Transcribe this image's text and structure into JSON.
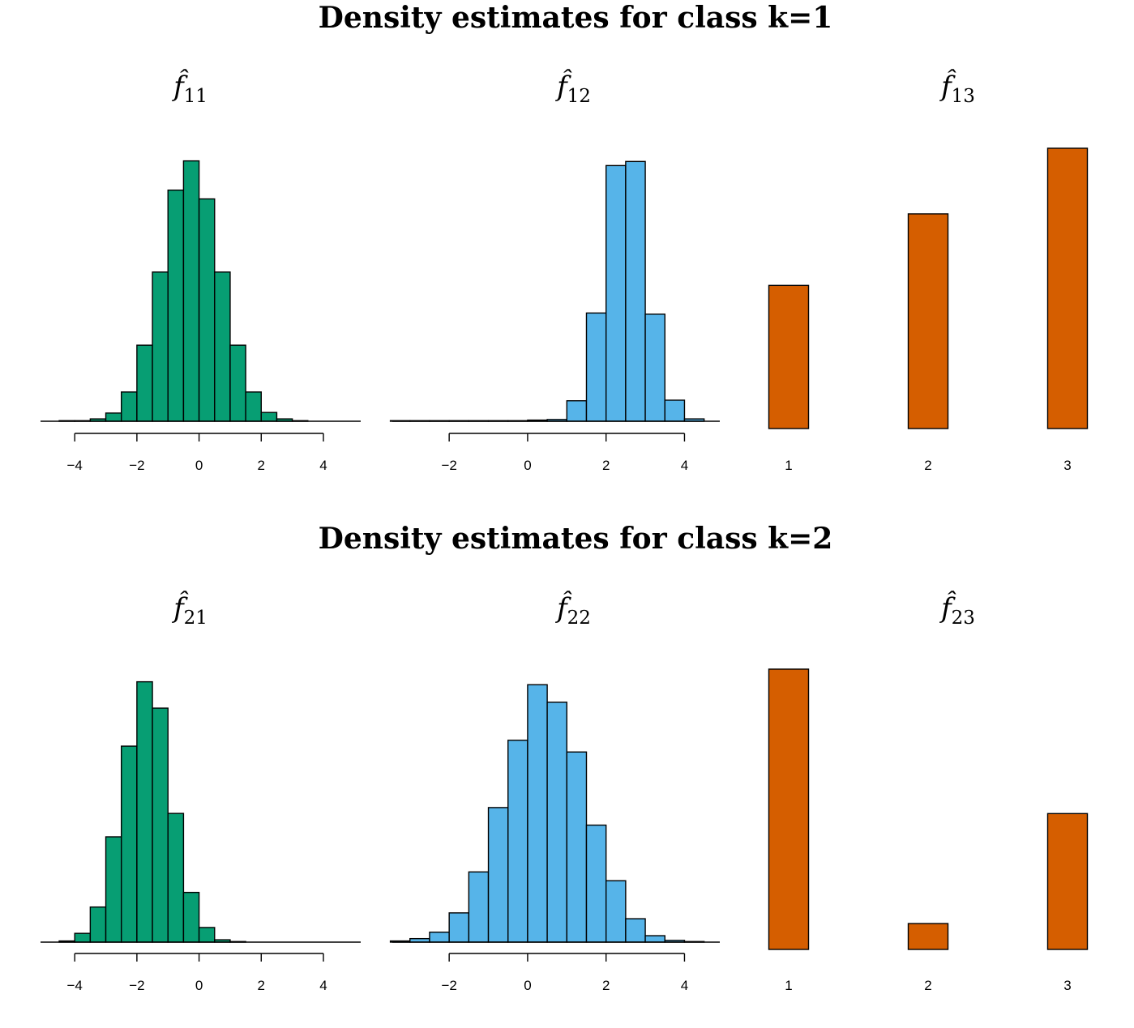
{
  "rows": [
    {
      "title": "Density estimates for class k=1"
    },
    {
      "title": "Density estimates for class k=2"
    }
  ],
  "colors": {
    "green": "#079e73",
    "blue": "#56b4e9",
    "orange": "#d55e00"
  },
  "chart_data": [
    {
      "type": "bar",
      "title_base": "f̂",
      "title_sub": "11",
      "color": "#079e73",
      "xlim": [
        -5.1,
        5.2
      ],
      "ylim": [
        0,
        0.45
      ],
      "bin_start": -4.5,
      "bin_width": 0.5,
      "values": [
        0.001,
        0.001,
        0.004,
        0.014,
        0.05,
        0.13,
        0.255,
        0.395,
        0.445,
        0.38,
        0.255,
        0.13,
        0.05,
        0.015,
        0.004,
        0.001
      ],
      "axis_ticks": [
        -4,
        -2,
        0,
        2,
        4
      ],
      "axis_range": [
        -4,
        4
      ],
      "tick_labels": [
        "−4",
        "−2",
        "0",
        "2",
        "4"
      ]
    },
    {
      "type": "bar",
      "title_base": "f̂",
      "title_sub": "12",
      "color": "#56b4e9",
      "xlim": [
        -3.45,
        4.9
      ],
      "ylim": [
        0,
        0.45
      ],
      "bin_start": -3.5,
      "bin_width": 0.5,
      "values": [
        0.001,
        0.001,
        0.001,
        0.001,
        0.001,
        0.001,
        0.001,
        0.002,
        0.003,
        0.035,
        0.185,
        0.437,
        0.444,
        0.183,
        0.036,
        0.004
      ],
      "axis_ticks": [
        -2,
        0,
        2,
        4
      ],
      "axis_range": [
        -2,
        4
      ],
      "tick_labels": [
        "−2",
        "0",
        "2",
        "4"
      ]
    },
    {
      "type": "bar",
      "title_base": "f̂",
      "title_sub": "13",
      "color": "#d55e00",
      "categories": [
        "1",
        "2",
        "3"
      ],
      "values": [
        0.24,
        0.36,
        0.47
      ],
      "ylim": [
        0,
        0.47
      ]
    },
    {
      "type": "bar",
      "title_base": "f̂",
      "title_sub": "21",
      "color": "#079e73",
      "xlim": [
        -5.1,
        5.2
      ],
      "ylim": [
        0,
        0.45
      ],
      "bin_start": -4.5,
      "bin_width": 0.5,
      "values": [
        0.002,
        0.015,
        0.06,
        0.18,
        0.335,
        0.445,
        0.4,
        0.22,
        0.085,
        0.025,
        0.004,
        0.001
      ],
      "axis_ticks": [
        -4,
        -2,
        0,
        2,
        4
      ],
      "axis_range": [
        -4,
        4
      ],
      "tick_labels": [
        "−4",
        "−2",
        "0",
        "2",
        "4"
      ]
    },
    {
      "type": "bar",
      "title_base": "f̂",
      "title_sub": "22",
      "color": "#56b4e9",
      "xlim": [
        -3.45,
        4.9
      ],
      "ylim": [
        0,
        0.45
      ],
      "bin_start": -3.5,
      "bin_width": 0.5,
      "values": [
        0.002,
        0.006,
        0.017,
        0.05,
        0.12,
        0.23,
        0.345,
        0.44,
        0.41,
        0.325,
        0.2,
        0.105,
        0.04,
        0.011,
        0.003,
        0.001
      ],
      "axis_ticks": [
        -2,
        0,
        2,
        4
      ],
      "axis_range": [
        -2,
        4
      ],
      "tick_labels": [
        "−2",
        "0",
        "2",
        "4"
      ]
    },
    {
      "type": "bar",
      "title_base": "f̂",
      "title_sub": "23",
      "color": "#d55e00",
      "categories": [
        "1",
        "2",
        "3"
      ],
      "values": [
        0.65,
        0.06,
        0.315
      ],
      "ylim": [
        0,
        0.65
      ]
    }
  ]
}
